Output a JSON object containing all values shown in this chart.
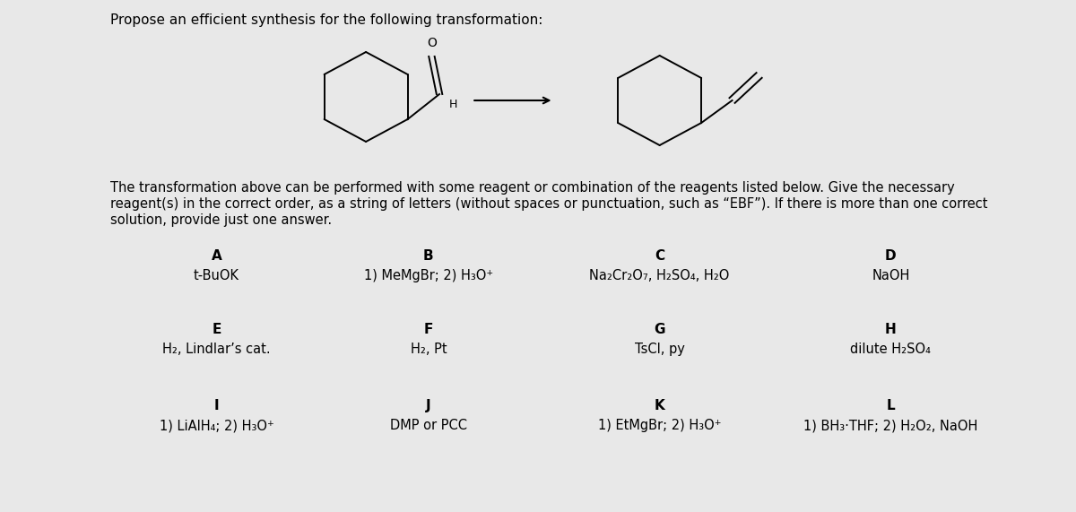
{
  "background_color": "#e8e8e8",
  "panel_color": "#ffffff",
  "title": "Propose an efficient synthesis for the following transformation:",
  "title_color": "#000000",
  "title_fontsize": 11.0,
  "description_line1": "The transformation above can be performed with some reagent or combination of the reagents listed below. Give the necessary",
  "description_line2": "reagent(s) in the correct order, as a string of letters (without spaces or punctuation, such as “EBF”). If there is more than one correct",
  "description_line3": "solution, provide just one answer.",
  "description_color": "#000000",
  "description_fontsize": 10.5,
  "reagents": [
    {
      "label": "A",
      "text": "t-BuOK",
      "col": 0,
      "row": 0
    },
    {
      "label": "B",
      "text": "1) MeMgBr; 2) H₃O⁺",
      "col": 1,
      "row": 0
    },
    {
      "label": "C",
      "text": "Na₂Cr₂O₇, H₂SO₄, H₂O",
      "col": 2,
      "row": 0
    },
    {
      "label": "D",
      "text": "NaOH",
      "col": 3,
      "row": 0
    },
    {
      "label": "E",
      "text": "H₂, Lindlar’s cat.",
      "col": 0,
      "row": 1
    },
    {
      "label": "F",
      "text": "H₂, Pt",
      "col": 1,
      "row": 1
    },
    {
      "label": "G",
      "text": "TsCl, py",
      "col": 2,
      "row": 1
    },
    {
      "label": "H",
      "text": "dilute H₂SO₄",
      "col": 3,
      "row": 1
    },
    {
      "label": "I",
      "text": "1) LiAlH₄; 2) H₃O⁺",
      "col": 0,
      "row": 2
    },
    {
      "label": "J",
      "text": "DMP or PCC",
      "col": 1,
      "row": 2
    },
    {
      "label": "K",
      "text": "1) EtMgBr; 2) H₃O⁺",
      "col": 2,
      "row": 2
    },
    {
      "label": "L",
      "text": "1) BH₃·THF; 2) H₂O₂, NaOH",
      "col": 3,
      "row": 2
    }
  ],
  "label_fontsize": 11,
  "reagent_fontsize": 10.5,
  "mol_lw": 1.4,
  "arrow_color": "#000000"
}
